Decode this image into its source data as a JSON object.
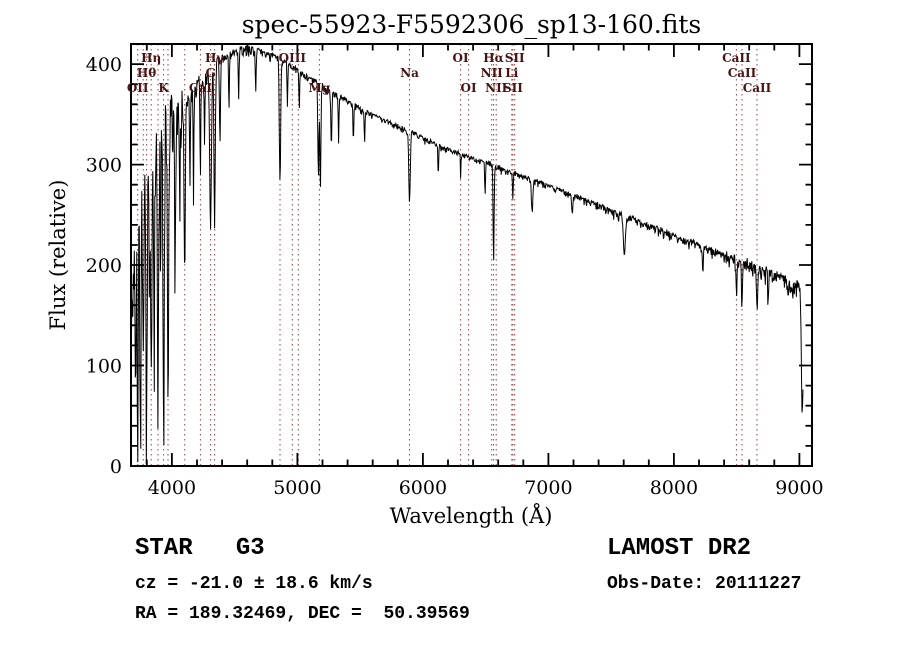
{
  "chart_data": {
    "type": "line",
    "title": "spec-55923-F5592306_sp13-160.fits",
    "xlabel": "Wavelength (Å)",
    "ylabel": "Flux (relative)",
    "xlim": [
      3674,
      9100
    ],
    "ylim": [
      0,
      420
    ],
    "x_ticks": [
      4000,
      5000,
      6000,
      7000,
      8000,
      9000
    ],
    "y_ticks": [
      0,
      100,
      200,
      300,
      400
    ],
    "x_minor_step": 200,
    "y_minor_step": 20,
    "grid": false,
    "legend": "none",
    "series_color": "#000000",
    "line_marker_color": "#a04040",
    "line_label_color": "#4a1212",
    "spectral_lines": [
      {
        "label": "OII",
        "wavelength": 3727,
        "row": 3
      },
      {
        "label": "",
        "wavelength": 3771,
        "row": 0
      },
      {
        "label": "Hθ",
        "wavelength": 3798,
        "row": 2
      },
      {
        "label": "Hη",
        "wavelength": 3835,
        "row": 1
      },
      {
        "label": "",
        "wavelength": 3889,
        "row": 0
      },
      {
        "label": "K",
        "wavelength": 3934,
        "row": 3
      },
      {
        "label": "",
        "wavelength": 3969,
        "row": 0
      },
      {
        "label": "",
        "wavelength": 4102,
        "row": 0
      },
      {
        "label": "CaI",
        "wavelength": 4227,
        "row": 3
      },
      {
        "label": "G",
        "wavelength": 4308,
        "row": 2
      },
      {
        "label": "Hγ",
        "wavelength": 4340,
        "row": 1
      },
      {
        "label": "",
        "wavelength": 4861,
        "row": 0
      },
      {
        "label": "OIII",
        "wavelength": 4959,
        "row": 1
      },
      {
        "label": "",
        "wavelength": 5007,
        "row": 0
      },
      {
        "label": "Mg",
        "wavelength": 5175,
        "row": 3
      },
      {
        "label": "Na",
        "wavelength": 5893,
        "row": 2
      },
      {
        "label": "OI",
        "wavelength": 6300,
        "row": 1
      },
      {
        "label": "OI",
        "wavelength": 6364,
        "row": 3
      },
      {
        "label": "NII",
        "wavelength": 6548,
        "row": 2
      },
      {
        "label": "Hα",
        "wavelength": 6563,
        "row": 1
      },
      {
        "label": "NII",
        "wavelength": 6584,
        "row": 3
      },
      {
        "label": "Li",
        "wavelength": 6708,
        "row": 2
      },
      {
        "label": "SII",
        "wavelength": 6717,
        "row": 3
      },
      {
        "label": "SII",
        "wavelength": 6731,
        "row": 1
      },
      {
        "label": "CaII",
        "wavelength": 8498,
        "row": 1
      },
      {
        "label": "CaII",
        "wavelength": 8542,
        "row": 2
      },
      {
        "label": "CaII",
        "wavelength": 8662,
        "row": 3
      }
    ],
    "envelope": [
      [
        3676,
        150
      ],
      [
        3700,
        215
      ],
      [
        3740,
        240
      ],
      [
        3780,
        262
      ],
      [
        3820,
        285
      ],
      [
        3860,
        305
      ],
      [
        3900,
        318
      ],
      [
        3950,
        330
      ],
      [
        4000,
        345
      ],
      [
        4060,
        355
      ],
      [
        4120,
        363
      ],
      [
        4180,
        374
      ],
      [
        4240,
        385
      ],
      [
        4300,
        394
      ],
      [
        4360,
        402
      ],
      [
        4420,
        407
      ],
      [
        4480,
        411
      ],
      [
        4550,
        414
      ],
      [
        4650,
        415
      ],
      [
        4750,
        411
      ],
      [
        4850,
        406
      ],
      [
        4950,
        398
      ],
      [
        5050,
        390
      ],
      [
        5150,
        382
      ],
      [
        5250,
        374
      ],
      [
        5350,
        367
      ],
      [
        5450,
        360
      ],
      [
        5550,
        353
      ],
      [
        5650,
        347
      ],
      [
        5750,
        341
      ],
      [
        5850,
        336
      ],
      [
        5950,
        330
      ],
      [
        6050,
        324
      ],
      [
        6150,
        318
      ],
      [
        6250,
        313
      ],
      [
        6350,
        308
      ],
      [
        6450,
        304
      ],
      [
        6550,
        300
      ],
      [
        6650,
        295
      ],
      [
        6750,
        291
      ],
      [
        6850,
        286
      ],
      [
        6950,
        282
      ],
      [
        7050,
        277
      ],
      [
        7150,
        272
      ],
      [
        7250,
        267
      ],
      [
        7350,
        262
      ],
      [
        7450,
        257
      ],
      [
        7550,
        252
      ],
      [
        7650,
        247
      ],
      [
        7750,
        242
      ],
      [
        7850,
        237
      ],
      [
        7950,
        232
      ],
      [
        8050,
        227
      ],
      [
        8150,
        222
      ],
      [
        8250,
        217
      ],
      [
        8350,
        212
      ],
      [
        8450,
        208
      ],
      [
        8550,
        203
      ],
      [
        8650,
        198
      ],
      [
        8750,
        193
      ],
      [
        8850,
        188
      ],
      [
        8900,
        184
      ],
      [
        8940,
        176
      ],
      [
        8970,
        186
      ],
      [
        9000,
        182
      ],
      [
        9012,
        160
      ],
      [
        9030,
        85
      ]
    ],
    "absorption_features": [
      [
        3712,
        4,
        140
      ],
      [
        3727,
        4,
        170
      ],
      [
        3750,
        4,
        210
      ],
      [
        3771,
        4,
        190
      ],
      [
        3798,
        5,
        220
      ],
      [
        3820,
        3,
        120
      ],
      [
        3835,
        5,
        230
      ],
      [
        3860,
        3,
        130
      ],
      [
        3889,
        5,
        250
      ],
      [
        3910,
        3,
        140
      ],
      [
        3934,
        5,
        295
      ],
      [
        3969,
        5,
        275
      ],
      [
        4026,
        4,
        140
      ],
      [
        4063,
        3,
        95
      ],
      [
        4102,
        5,
        165
      ],
      [
        4144,
        3,
        85
      ],
      [
        4172,
        3,
        95
      ],
      [
        4227,
        3,
        100
      ],
      [
        4260,
        3,
        70
      ],
      [
        4308,
        7,
        150
      ],
      [
        4340,
        5,
        160
      ],
      [
        4383,
        4,
        85
      ],
      [
        4455,
        3,
        50
      ],
      [
        4531,
        3,
        45
      ],
      [
        4668,
        3,
        40
      ],
      [
        4861,
        5,
        125
      ],
      [
        4920,
        3,
        40
      ],
      [
        5015,
        3,
        40
      ],
      [
        5167,
        4,
        95
      ],
      [
        5183,
        4,
        105
      ],
      [
        5270,
        4,
        55
      ],
      [
        5328,
        3,
        45
      ],
      [
        5446,
        3,
        40
      ],
      [
        5535,
        3,
        35
      ],
      [
        5893,
        6,
        70
      ],
      [
        6122,
        3,
        30
      ],
      [
        6300,
        2,
        25
      ],
      [
        6495,
        3,
        30
      ],
      [
        6563,
        4,
        95
      ],
      [
        6717,
        3,
        25
      ],
      [
        6870,
        6,
        30
      ],
      [
        7190,
        5,
        20
      ],
      [
        7605,
        8,
        40
      ],
      [
        8230,
        4,
        25
      ],
      [
        8498,
        4,
        35
      ],
      [
        8542,
        4,
        45
      ],
      [
        8662,
        4,
        40
      ],
      [
        8750,
        3,
        28
      ],
      [
        9020,
        5,
        75
      ]
    ],
    "noise_profile": [
      [
        3676,
        105
      ],
      [
        3850,
        95
      ],
      [
        3950,
        85
      ],
      [
        4050,
        55
      ],
      [
        4150,
        28
      ],
      [
        4250,
        16
      ],
      [
        4400,
        11
      ],
      [
        4600,
        8
      ],
      [
        5000,
        7
      ],
      [
        5500,
        6
      ],
      [
        6000,
        5
      ],
      [
        6600,
        5
      ],
      [
        7200,
        6
      ],
      [
        7800,
        7
      ],
      [
        8300,
        9
      ],
      [
        8700,
        12
      ],
      [
        8950,
        15
      ],
      [
        9030,
        16
      ]
    ]
  },
  "annotations": {
    "class_line": "STAR   G3",
    "survey": "LAMOST DR2",
    "cz_line": "cz = -21.0 ± 18.6 km/s",
    "obs_date_line": "Obs-Date: 20111227",
    "radec_line": "RA = 189.32469, DEC =  50.39569"
  }
}
